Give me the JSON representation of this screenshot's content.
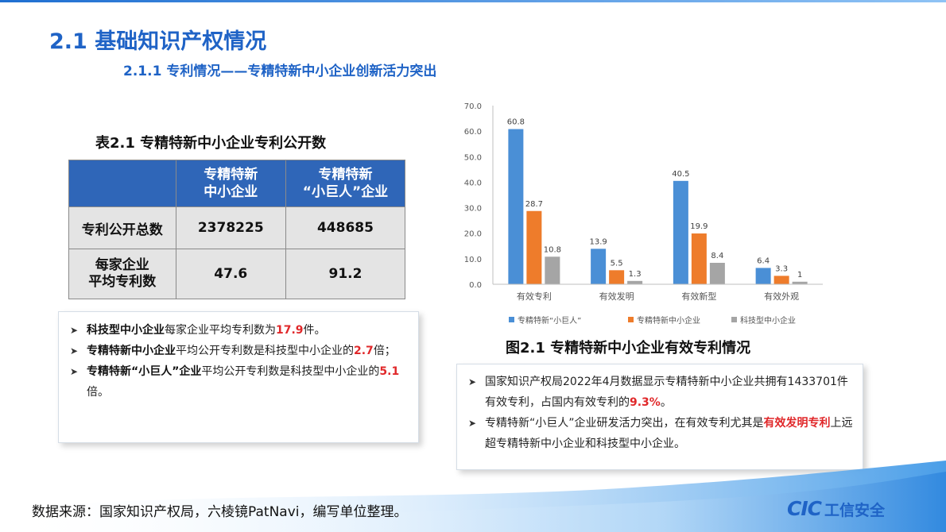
{
  "page": {
    "title": "2.1 基础知识产权情况",
    "subtitle": "2.1.1 专利情况——专精特新中小企业创新活力突出"
  },
  "table": {
    "caption": "表2.1  专精特新中小企业专利公开数",
    "header": {
      "col1_line1": "专精特新",
      "col1_line2": "中小企业",
      "col2_line1": "专精特新",
      "col2_line2": "“小巨人”企业"
    },
    "rows": [
      {
        "label": "专利公开总数",
        "v1": "2378225",
        "v2": "448685"
      },
      {
        "label_line1": "每家企业",
        "label_line2": "平均专利数",
        "v1": "47.6",
        "v2": "91.2"
      }
    ]
  },
  "notes_left": [
    {
      "bold": "科技型中小企业",
      "text1": "每家企业平均专利数为",
      "red": "17.9",
      "text2": "件。"
    },
    {
      "bold": "专精特新中小企业",
      "text1": "平均公开专利数是科技型中小企业的",
      "red": "2.7",
      "text2": "倍；"
    },
    {
      "bold": "专精特新“小巨人”企业",
      "text1": "平均公开专利数是科技型中小企业的",
      "red": "5.1",
      "text2": "倍。"
    }
  ],
  "figure_caption": "图2.1  专精特新中小企业有效专利情况",
  "notes_right": [
    {
      "text1": "国家知识产权局2022年4月数据显示专精特新中小企业共拥有1433701件有效专利，占国内有效专利的",
      "red": "9.3%",
      "text2": "。"
    },
    {
      "text1": "专精特新“小巨人”企业研发活力突出，在有效专利尤其是",
      "red": "有效发明专利",
      "text2": "上远超专精特新中小企业和科技型中小企业。"
    }
  ],
  "footer": "数据来源：国家知识产权局，六棱镜PatNavi，编写单位整理。",
  "logo": {
    "mark": "CIC",
    "name": "工信安全"
  },
  "colors": {
    "accent": "#1f63c6",
    "highlight": "#e0282a",
    "table_header": "#2f66b8"
  },
  "chart_data": {
    "type": "bar",
    "title": "",
    "xlabel": "",
    "ylabel": "",
    "categories": [
      "有效专利",
      "有效发明",
      "有效新型",
      "有效外观"
    ],
    "series": [
      {
        "name": "专精特新“小巨人”",
        "color": "#4a8fd6",
        "values": [
          60.8,
          13.9,
          40.5,
          6.4
        ],
        "labels": [
          "60.8",
          "13.9",
          "40.5",
          "6.4"
        ]
      },
      {
        "name": "专精特新中小企业",
        "color": "#ee7c2b",
        "values": [
          28.7,
          5.5,
          19.9,
          3.3
        ],
        "labels": [
          "28.7",
          "5.5",
          "19.9",
          "3.3"
        ]
      },
      {
        "name": "科技型中小企业",
        "color": "#a5a5a5",
        "values": [
          10.8,
          1.3,
          8.4,
          1
        ],
        "labels": [
          "10.8",
          "1.3",
          "8.4",
          "1"
        ]
      }
    ],
    "ylim": [
      0,
      70
    ],
    "yticks": [
      "0.0",
      "10.0",
      "20.0",
      "30.0",
      "40.0",
      "50.0",
      "60.0",
      "70.0"
    ],
    "grid": false,
    "legend": "bottom"
  }
}
